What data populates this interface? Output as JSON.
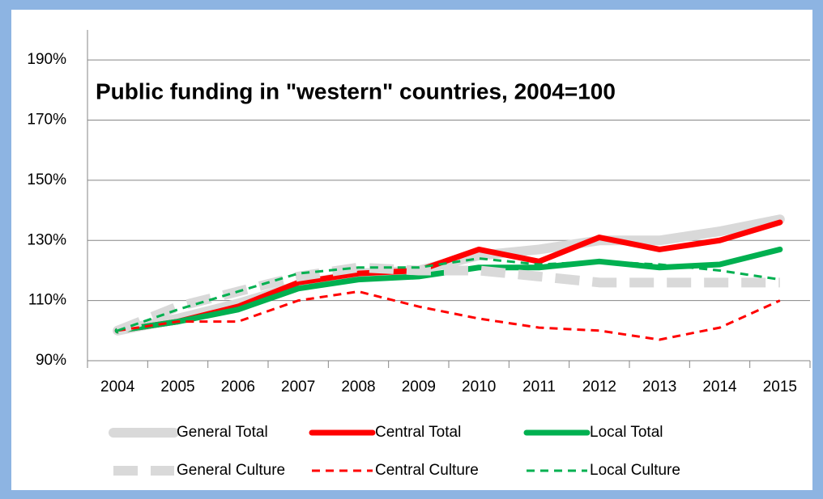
{
  "chart_data": {
    "type": "line",
    "title": "Public funding in \"western\" countries, 2004=100",
    "categories": [
      "2004",
      "2005",
      "2006",
      "2007",
      "2008",
      "2009",
      "2010",
      "2011",
      "2012",
      "2013",
      "2014",
      "2015"
    ],
    "series": [
      {
        "name": "General Total",
        "color": "#d9d9d9",
        "dashed": false,
        "values": [
          100,
          104,
          109,
          115,
          119,
          120,
          125,
          127,
          130,
          130,
          133,
          137
        ]
      },
      {
        "name": "Central Total",
        "color": "#ff0000",
        "dashed": false,
        "values": [
          100,
          103,
          108,
          116,
          119,
          120,
          127,
          123,
          131,
          127,
          130,
          136
        ]
      },
      {
        "name": "Local Total",
        "color": "#00b050",
        "dashed": false,
        "values": [
          100,
          103,
          107,
          114,
          117,
          118,
          121,
          121,
          123,
          121,
          122,
          127
        ]
      },
      {
        "name": "General Culture",
        "color": "#d9d9d9",
        "dashed": true,
        "values": [
          100,
          108,
          113,
          118,
          121,
          120,
          120,
          118,
          116,
          116,
          116,
          116
        ]
      },
      {
        "name": "Central Culture",
        "color": "#ff0000",
        "dashed": true,
        "values": [
          100,
          103,
          103,
          110,
          113,
          108,
          104,
          101,
          100,
          97,
          101,
          110
        ]
      },
      {
        "name": "Local Culture",
        "color": "#00b050",
        "dashed": true,
        "values": [
          100,
          107,
          113,
          119,
          121,
          121,
          124,
          122,
          123,
          122,
          120,
          117
        ]
      }
    ],
    "ylim": [
      90,
      200
    ],
    "yticks": [
      {
        "value": 90,
        "label": "90%"
      },
      {
        "value": 110,
        "label": "110%"
      },
      {
        "value": 130,
        "label": "130%"
      },
      {
        "value": 150,
        "label": "150%"
      },
      {
        "value": 170,
        "label": "170%"
      },
      {
        "value": 190,
        "label": "190%"
      }
    ],
    "grid": true,
    "legend": "bottom"
  }
}
